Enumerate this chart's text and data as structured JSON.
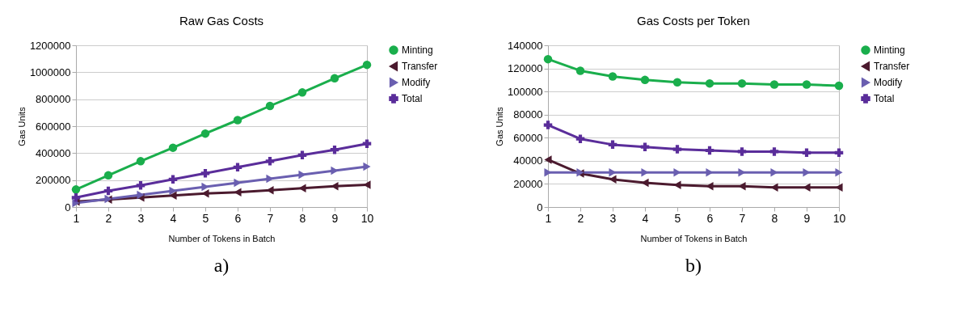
{
  "chart_data": [
    {
      "type": "line",
      "title": "Raw Gas Costs",
      "xlabel": "Number of Tokens in Batch",
      "ylabel": "Gas Units",
      "x": [
        1,
        2,
        3,
        4,
        5,
        6,
        7,
        8,
        9,
        10
      ],
      "xlim": [
        1,
        10
      ],
      "xticks": [
        1,
        2,
        3,
        4,
        5,
        6,
        7,
        8,
        9,
        10
      ],
      "ylim": [
        0,
        1200000
      ],
      "yticks": [
        0,
        200000,
        400000,
        600000,
        800000,
        1000000,
        1200000
      ],
      "grid": "y",
      "legend": "right",
      "annotations": [
        "a)"
      ],
      "series": [
        {
          "name": "Minting",
          "color": "#1aae4c",
          "marker": "circle",
          "values": [
            130000,
            235000,
            340000,
            440000,
            545000,
            645000,
            750000,
            850000,
            955000,
            1055000
          ]
        },
        {
          "name": "Transfer",
          "color": "#4b1a2e",
          "marker": "triangle-left",
          "values": [
            40000,
            55000,
            70000,
            85000,
            100000,
            110000,
            125000,
            140000,
            155000,
            165000
          ]
        },
        {
          "name": "Modify",
          "color": "#6a5fb0",
          "marker": "triangle-right",
          "values": [
            30000,
            60000,
            90000,
            120000,
            150000,
            180000,
            210000,
            240000,
            270000,
            300000
          ]
        },
        {
          "name": "Total",
          "color": "#5a2d9a",
          "marker": "cross",
          "values": [
            70000,
            120000,
            160000,
            205000,
            250000,
            295000,
            340000,
            385000,
            425000,
            470000
          ]
        }
      ]
    },
    {
      "type": "line",
      "title": "Gas Costs per Token",
      "xlabel": "Number of Tokens in Batch",
      "ylabel": "Gas Units",
      "x": [
        1,
        2,
        3,
        4,
        5,
        6,
        7,
        8,
        9,
        10
      ],
      "xlim": [
        1,
        10
      ],
      "xticks": [
        1,
        2,
        3,
        4,
        5,
        6,
        7,
        8,
        9,
        10
      ],
      "ylim": [
        0,
        140000
      ],
      "yticks": [
        0,
        20000,
        40000,
        60000,
        80000,
        100000,
        120000,
        140000
      ],
      "grid": "y",
      "legend": "right",
      "annotations": [
        "b)"
      ],
      "series": [
        {
          "name": "Minting",
          "color": "#1aae4c",
          "marker": "circle",
          "values": [
            128000,
            118000,
            113000,
            110000,
            108000,
            107000,
            107000,
            106000,
            106000,
            105000
          ]
        },
        {
          "name": "Transfer",
          "color": "#4b1a2e",
          "marker": "triangle-left",
          "values": [
            41000,
            29000,
            24000,
            21000,
            19000,
            18000,
            18000,
            17000,
            17000,
            17000
          ]
        },
        {
          "name": "Modify",
          "color": "#6a5fb0",
          "marker": "triangle-right",
          "values": [
            30000,
            30000,
            30000,
            30000,
            30000,
            30000,
            30000,
            30000,
            30000,
            30000
          ]
        },
        {
          "name": "Total",
          "color": "#5a2d9a",
          "marker": "cross",
          "values": [
            71000,
            59000,
            54000,
            52000,
            50000,
            49000,
            48000,
            48000,
            47000,
            47000
          ]
        }
      ]
    }
  ]
}
